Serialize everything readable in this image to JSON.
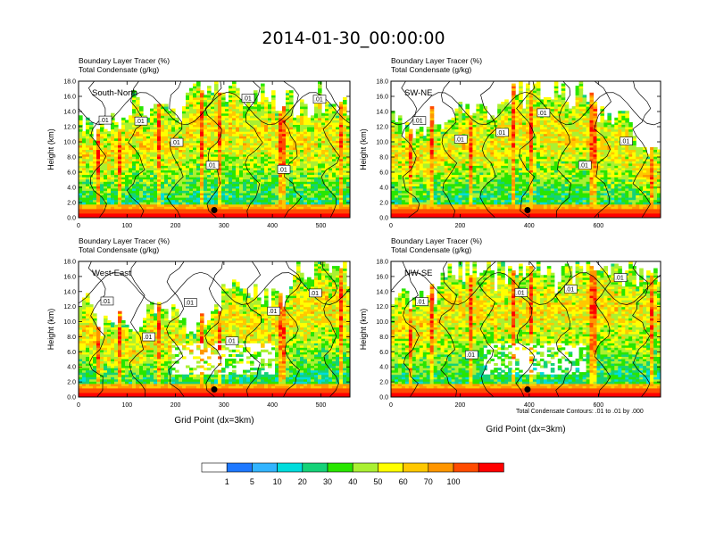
{
  "figure": {
    "title": "2014-01-30_00:00:00",
    "panel_title_line1": "Boundary Layer Tracer   (%)",
    "panel_title_line2": "Total Condensate   (g/kg)",
    "contour_note": "Total Condensate Contours: .01 to .01 by .000",
    "xlabel": "Grid Point (dx=3km)",
    "ylabel": "Height (km)"
  },
  "colorbar": {
    "labels": [
      "1",
      "5",
      "10",
      "20",
      "30",
      "40",
      "50",
      "60",
      "70",
      "100"
    ],
    "colors": [
      "#ffffff",
      "#1e78ff",
      "#32b4ff",
      "#00dcdc",
      "#14d278",
      "#28e600",
      "#aaf032",
      "#ffff00",
      "#ffc800",
      "#ff9600",
      "#ff4b00",
      "#ff0000"
    ]
  },
  "chart_data": [
    {
      "type": "heatmap",
      "panel": "South-North",
      "title": "Boundary Layer Tracer   (%)",
      "subtitle": "Total Condensate   (g/kg)",
      "xlabel": "",
      "ylabel": "Height (km)",
      "xlim": [
        0,
        560
      ],
      "ylim": [
        0,
        18
      ],
      "xticks": [
        0,
        100,
        200,
        300,
        400,
        500
      ],
      "yticks": [
        "0.0",
        "2.0",
        "4.0",
        "6.0",
        "8.0",
        "10.0",
        "12.0",
        "14.0",
        "16.0",
        "18.0"
      ],
      "contour_labels": [
        ".01",
        ".01",
        ".01",
        ".01",
        ".01",
        ".01",
        ".01"
      ],
      "marker": {
        "x": 280,
        "y": 1.0
      }
    },
    {
      "type": "heatmap",
      "panel": "SW-NE",
      "title": "Boundary Layer Tracer   (%)",
      "subtitle": "Total Condensate   (g/kg)",
      "xlabel": "",
      "ylabel": "Height (km)",
      "xlim": [
        0,
        780
      ],
      "ylim": [
        0,
        18
      ],
      "xticks": [
        0,
        200,
        400,
        600
      ],
      "yticks": [
        "0.0",
        "2.0",
        "4.0",
        "6.0",
        "8.0",
        "10.0",
        "12.0",
        "14.0",
        "16.0",
        "18.0"
      ],
      "contour_labels": [
        ".01",
        ".01",
        ".01",
        ".01",
        ".01",
        ".01"
      ],
      "marker": {
        "x": 395,
        "y": 1.0
      }
    },
    {
      "type": "heatmap",
      "panel": "West-East",
      "title": "Boundary Layer Tracer   (%)",
      "subtitle": "Total Condensate   (g/kg)",
      "xlabel": "Grid Point (dx=3km)",
      "ylabel": "Height (km)",
      "xlim": [
        0,
        560
      ],
      "ylim": [
        0,
        18
      ],
      "xticks": [
        0,
        100,
        200,
        300,
        400,
        500
      ],
      "yticks": [
        "0.0",
        "2.0",
        "4.0",
        "6.0",
        "8.0",
        "10.0",
        "12.0",
        "14.0",
        "16.0",
        "18.0"
      ],
      "contour_labels": [
        ".01",
        ".01",
        ".01",
        ".01",
        ".01",
        ".01"
      ],
      "marker": {
        "x": 280,
        "y": 1.0
      }
    },
    {
      "type": "heatmap",
      "panel": "NW-SE",
      "title": "Boundary Layer Tracer   (%)",
      "subtitle": "Total Condensate   (g/kg)",
      "xlabel": "Grid Point (dx=3km)",
      "ylabel": "Height (km)",
      "xlim": [
        0,
        780
      ],
      "ylim": [
        0,
        18
      ],
      "xticks": [
        0,
        200,
        400,
        600
      ],
      "yticks": [
        "0.0",
        "2.0",
        "4.0",
        "6.0",
        "8.0",
        "10.0",
        "12.0",
        "14.0",
        "16.0",
        "18.0"
      ],
      "contour_labels": [
        ".01",
        ".01",
        ".01",
        ".01",
        ".01"
      ],
      "marker": {
        "x": 395,
        "y": 1.0
      }
    }
  ]
}
